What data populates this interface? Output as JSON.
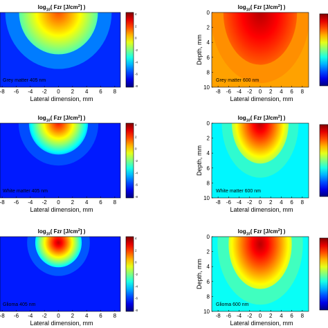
{
  "chart_data": [
    {
      "type": "heatmap",
      "title": "log10( Fzr [J/cm2] )",
      "annotation": "Grey matter 405 nm",
      "xlabel": "Lateral dimension, mm",
      "ylabel": "",
      "x_ticks": [
        "-8",
        "-6",
        "-4",
        "-2",
        "0",
        "2",
        "4",
        "6",
        "8"
      ],
      "y_ticks": [],
      "xlim": [
        -8.8,
        8.8
      ],
      "ylim": [
        0,
        10
      ],
      "colorbar": {
        "ticks": [
          "4",
          "2",
          "0",
          "-2",
          "-4",
          "-6",
          "-8"
        ],
        "range": [
          -8,
          4
        ]
      },
      "source": {
        "x_mm": 0,
        "depth_mm": 0,
        "peak_log10": 1.5,
        "radius_mm": 5.6,
        "outer_log10": -2.5,
        "decay_per_mm": 1.5,
        "floor_log10": -6
      }
    },
    {
      "type": "heatmap",
      "title": "log10( Fzr [J/cm2] )",
      "annotation": "Grey matter 600 nm",
      "xlabel": "Lateral dimension, mm",
      "ylabel": "Depth, mm",
      "x_ticks": [
        "-8",
        "-6",
        "-4",
        "-2",
        "0",
        "2",
        "4",
        "6",
        "8"
      ],
      "y_ticks": [
        "0",
        "2",
        "4",
        "6",
        "8",
        "10"
      ],
      "xlim": [
        -9.2,
        9.2
      ],
      "ylim": [
        0,
        10
      ],
      "colorbar": {
        "ticks": [],
        "range": [
          -8,
          4
        ]
      },
      "source": {
        "x_mm": 0,
        "depth_mm": 0,
        "peak_log10": 3.3,
        "radius_mm": 7,
        "outer_log10": 1.4,
        "decay_per_mm": 0.35,
        "floor_log10": 0.6
      }
    },
    {
      "type": "heatmap",
      "title": "log10( Fzr [J/cm2] )",
      "annotation": "White matter 405 nm",
      "xlabel": "Lateral dimension, mm",
      "ylabel": "",
      "x_ticks": [
        "-8",
        "-6",
        "-4",
        "-2",
        "0",
        "2",
        "4",
        "6",
        "8"
      ],
      "y_ticks": [],
      "xlim": [
        -8.8,
        8.8
      ],
      "ylim": [
        0,
        10
      ],
      "colorbar": {
        "ticks": [
          "4",
          "2",
          "0",
          "-2",
          "-4",
          "-6",
          "-8"
        ],
        "range": [
          -8,
          4
        ]
      },
      "source": {
        "x_mm": 0,
        "depth_mm": 0,
        "peak_log10": 2.2,
        "radius_mm": 4.2,
        "outer_log10": -4,
        "decay_per_mm": 1.6,
        "floor_log10": -6.2
      }
    },
    {
      "type": "heatmap",
      "title": "log10( Fzr [J/cm2] )",
      "annotation": "White matter 600 nm",
      "xlabel": "Lateral dimension, mm",
      "ylabel": "Depth, mm",
      "x_ticks": [
        "-8",
        "-6",
        "-4",
        "-2",
        "0",
        "2",
        "4",
        "6",
        "8"
      ],
      "y_ticks": [
        "0",
        "2",
        "4",
        "6",
        "8",
        "10"
      ],
      "xlim": [
        -9.2,
        9.2
      ],
      "ylim": [
        0,
        10
      ],
      "colorbar": {
        "ticks": [],
        "range": [
          -8,
          4
        ]
      },
      "source": {
        "x_mm": 0,
        "depth_mm": 0,
        "peak_log10": 3.3,
        "radius_mm": 5.4,
        "outer_log10": -1.4,
        "decay_per_mm": 0.9,
        "floor_log10": -3.6
      }
    },
    {
      "type": "heatmap",
      "title": "log10( Fzr [J/cm2] )",
      "annotation": "Glioma 405 nm",
      "xlabel": "Lateral dimension, mm",
      "ylabel": "",
      "x_ticks": [
        "-8",
        "-6",
        "-4",
        "-2",
        "0",
        "2",
        "4",
        "6",
        "8"
      ],
      "y_ticks": [],
      "xlim": [
        -8.8,
        8.8
      ],
      "ylim": [
        0,
        10
      ],
      "colorbar": {
        "ticks": [
          "4",
          "2",
          "0",
          "-2",
          "-4",
          "-6",
          "-8"
        ],
        "range": [
          -8,
          4
        ]
      },
      "source": {
        "x_mm": 0,
        "depth_mm": 0.8,
        "peak_log10": 3.2,
        "radius_mm": 3.3,
        "outer_log10": -3.6,
        "decay_per_mm": 1.6,
        "floor_log10": -6.2
      }
    },
    {
      "type": "heatmap",
      "title": "log10( Fzr [J/cm2] )",
      "annotation": "Glioma 600 nm",
      "xlabel": "Lateral dimension, mm",
      "ylabel": "Depth, mm",
      "x_ticks": [
        "-8",
        "-6",
        "-4",
        "-2",
        "0",
        "2",
        "4",
        "6",
        "8"
      ],
      "y_ticks": [
        "0",
        "2",
        "4",
        "6",
        "8",
        "10"
      ],
      "xlim": [
        -9.2,
        9.2
      ],
      "ylim": [
        0,
        10
      ],
      "colorbar": {
        "ticks": [],
        "range": [
          -8,
          4
        ]
      },
      "source": {
        "x_mm": 0,
        "depth_mm": 1.0,
        "peak_log10": 3.3,
        "radius_mm": 6.0,
        "outer_log10": -1.0,
        "decay_per_mm": 0.8,
        "floor_log10": -3.4
      }
    }
  ]
}
